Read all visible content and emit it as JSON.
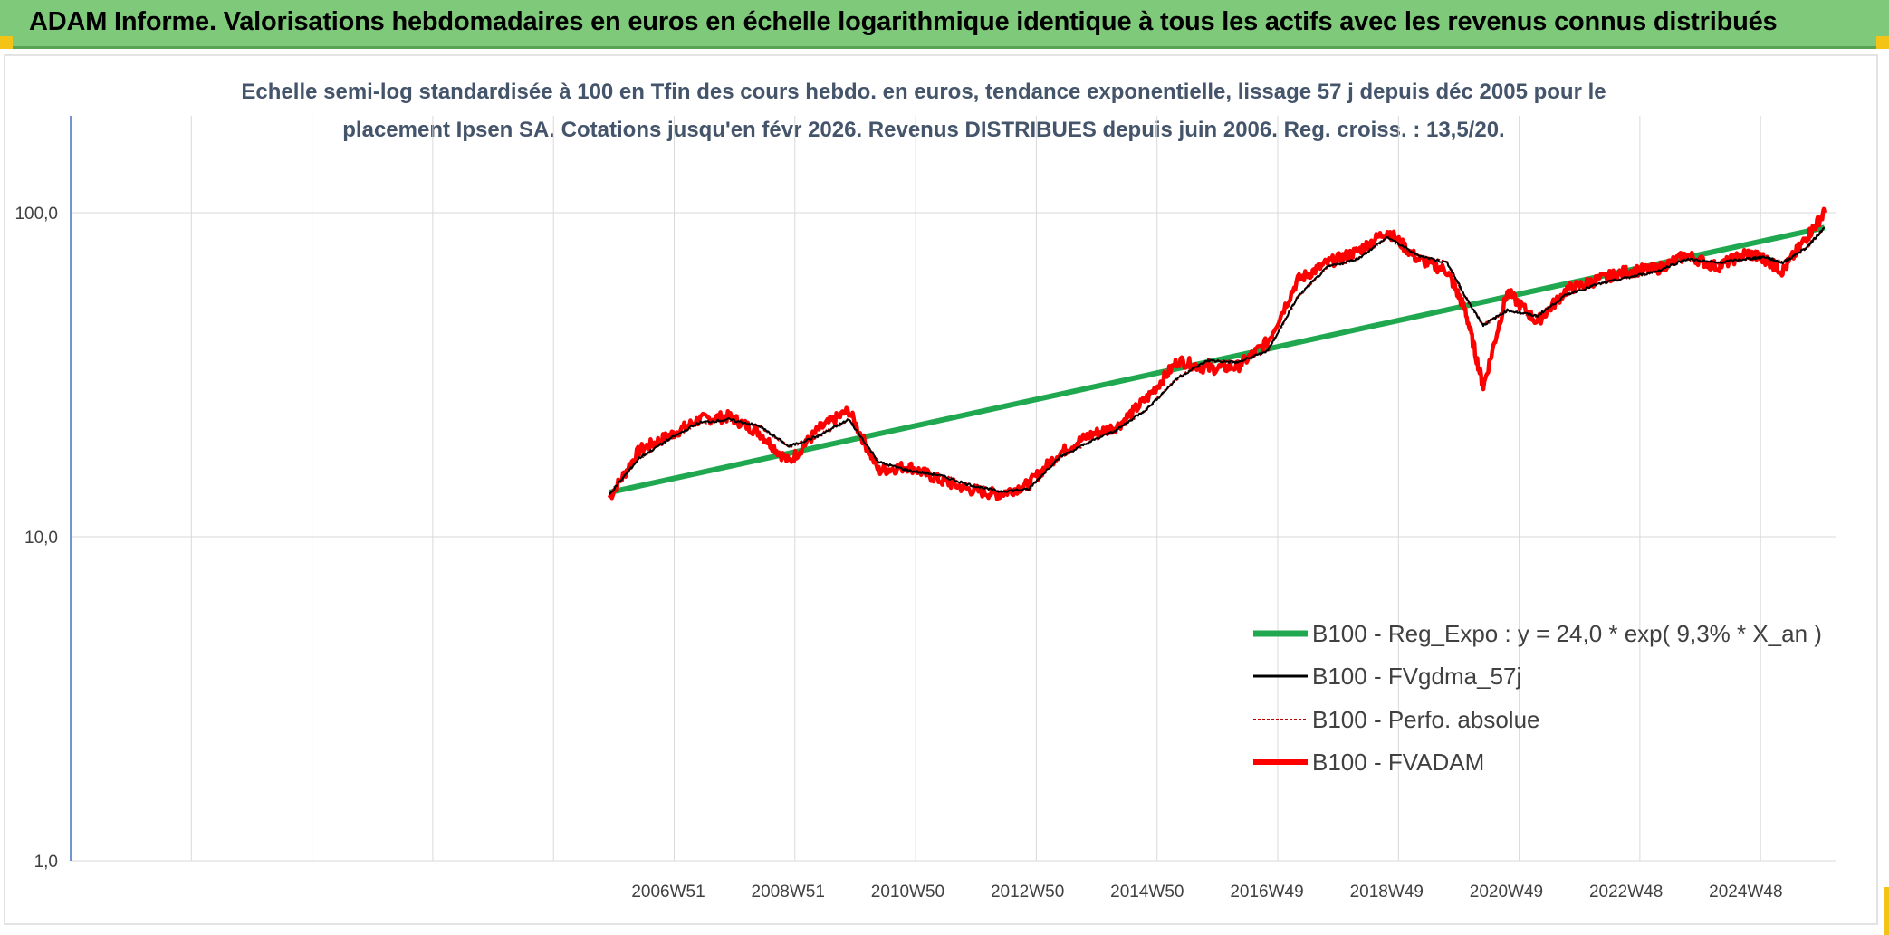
{
  "header": {
    "title": "ADAM Informe. Valorisations hebdomadaires en euros en échelle logarithmique identique à tous les actifs avec les revenus connus distribués"
  },
  "chart_data": {
    "type": "line",
    "subtitle_line1": "Echelle semi-log standardisée à 100 en Tfin des cours hebdo. en euros, tendance exponentielle, lissage 57 j depuis déc 2005 pour le",
    "subtitle_line2": "placement Ipsen SA. Cotations jusqu'en févr 2026. Revenus DISTRIBUES depuis juin 2006. Reg. croiss. : 13,5/20.",
    "y_scale": "log",
    "ylim": [
      1,
      200
    ],
    "y_ticks": [
      "100,0",
      "10,0",
      "1,0"
    ],
    "x_ticks": [
      "2006W51",
      "2008W51",
      "2010W50",
      "2012W50",
      "2014W50",
      "2016W49",
      "2018W49",
      "2020W49",
      "2022W48",
      "2024W48"
    ],
    "grid": true,
    "legend_position": "bottom-right",
    "x": [
      -9.0,
      -4.0,
      0.0,
      0.5,
      1.0,
      1.5,
      2.0,
      2.5,
      3.0,
      3.5,
      4.0,
      4.5,
      5.0,
      5.5,
      6.0,
      6.5,
      7.0,
      7.5,
      8.0,
      8.5,
      9.0,
      9.5,
      10.0,
      10.5,
      11.0,
      11.5,
      12.0,
      12.5,
      13.0,
      13.5,
      14.0,
      14.3,
      14.6,
      15.0,
      15.5,
      16.0,
      16.5,
      17.0,
      17.5,
      18.0,
      18.5,
      19.0,
      19.3,
      19.6,
      20.0,
      20.3
    ],
    "series": [
      {
        "name": "B100 - Reg_Expo : y = 24,0 * exp( 9,3% *  X_an )",
        "color": "#1fa84f",
        "values": [
          null,
          null,
          13.7,
          null,
          null,
          null,
          null,
          null,
          null,
          null,
          null,
          null,
          null,
          null,
          null,
          null,
          null,
          null,
          null,
          null,
          null,
          null,
          null,
          null,
          null,
          null,
          null,
          null,
          null,
          null,
          null,
          null,
          null,
          null,
          null,
          null,
          null,
          null,
          null,
          null,
          null,
          null,
          null,
          null,
          null,
          90.0
        ]
      },
      {
        "name": "B100 - FVgdma_57j",
        "color": "#000000",
        "values": [
          null,
          null,
          13.5,
          17.5,
          20.0,
          22.5,
          23.0,
          22.0,
          19.0,
          20.5,
          23.0,
          17.0,
          16.0,
          15.5,
          14.5,
          13.8,
          14.0,
          17.5,
          19.5,
          21.5,
          25.0,
          31.0,
          35.0,
          34.5,
          37.5,
          55.0,
          68.0,
          72.0,
          84.0,
          74.0,
          70.0,
          55.0,
          45.0,
          50.0,
          48.0,
          56.0,
          60.0,
          63.0,
          66.0,
          72.0,
          70.0,
          72.0,
          73.0,
          70.0,
          78.0,
          90.0
        ]
      },
      {
        "name": "B100 - Perfo. absolue",
        "color": "#c00000",
        "values": [
          null,
          null,
          13.5,
          17.5,
          20.0,
          22.5,
          23.0,
          22.0,
          19.0,
          20.5,
          23.0,
          17.0,
          16.0,
          15.5,
          14.5,
          13.8,
          14.0,
          17.5,
          19.5,
          21.5,
          25.0,
          31.0,
          35.0,
          34.5,
          37.5,
          55.0,
          68.0,
          72.0,
          84.0,
          74.0,
          70.0,
          55.0,
          45.0,
          50.0,
          48.0,
          56.0,
          60.0,
          63.0,
          66.0,
          72.0,
          70.0,
          72.0,
          73.0,
          70.0,
          78.0,
          90.0
        ]
      },
      {
        "name": "B100 - FVADAM",
        "color": "#ff0000",
        "values": [
          null,
          null,
          13.2,
          18.5,
          20.5,
          23.0,
          23.5,
          21.0,
          17.0,
          21.5,
          24.5,
          16.0,
          16.5,
          15.0,
          14.0,
          13.5,
          14.5,
          18.0,
          20.5,
          22.0,
          27.0,
          35.0,
          33.0,
          33.5,
          40.0,
          62.0,
          70.0,
          76.0,
          88.0,
          72.0,
          66.0,
          50.0,
          29.0,
          57.0,
          46.0,
          58.0,
          62.0,
          66.0,
          67.0,
          74.0,
          68.0,
          75.0,
          72.0,
          66.0,
          84.0,
          100.0
        ]
      }
    ]
  }
}
